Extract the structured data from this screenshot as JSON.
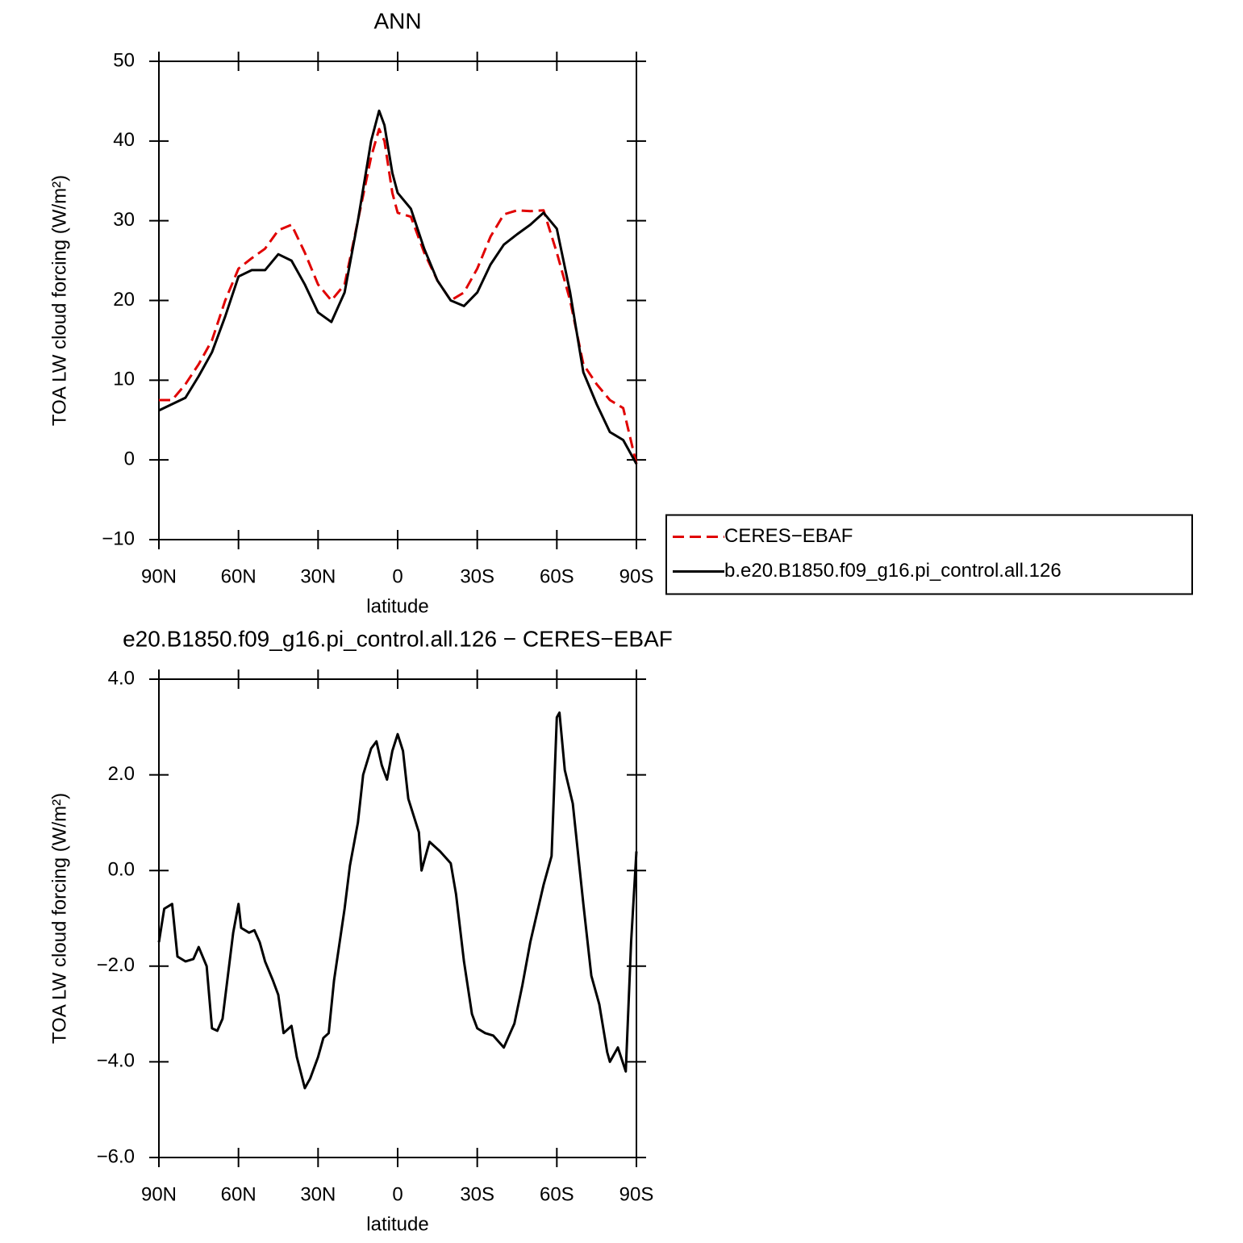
{
  "chart_data": [
    {
      "type": "line",
      "title": "ANN",
      "xlabel": "latitude",
      "ylabel": "TOA LW cloud forcing (W/m²)",
      "x": [
        90,
        85,
        80,
        75,
        70,
        65,
        60,
        55,
        50,
        45,
        40,
        35,
        30,
        25,
        20,
        15,
        10,
        7,
        5,
        2,
        0,
        -5,
        -10,
        -15,
        -20,
        -25,
        -30,
        -35,
        -40,
        -45,
        -50,
        -55,
        -60,
        -65,
        -70,
        -75,
        -80,
        -85,
        -90
      ],
      "series": [
        {
          "name": "CERES−EBAF",
          "color": "#e00000",
          "dash": true,
          "values": [
            7.5,
            7.5,
            9.5,
            12,
            15,
            20,
            24,
            25.3,
            26.5,
            28.8,
            29.5,
            26,
            22,
            20,
            22,
            30,
            38,
            41.5,
            40,
            33.5,
            31,
            30.5,
            26,
            22.5,
            20,
            21,
            24,
            28,
            30.8,
            31.3,
            31.2,
            31.3,
            26,
            20,
            12,
            9.5,
            7.5,
            6.5,
            -0.5
          ]
        },
        {
          "name": "b.e20.B1850.f09_g16.pi_control.all.126",
          "color": "#000000",
          "dash": false,
          "values": [
            6.2,
            7.0,
            7.8,
            10.5,
            13.5,
            18,
            23,
            23.8,
            23.8,
            25.8,
            25,
            22,
            18.5,
            17.3,
            21,
            30,
            40,
            43.8,
            42,
            36,
            33.5,
            31.5,
            26.5,
            22.5,
            20,
            19.3,
            21,
            24.5,
            27,
            28.3,
            29.5,
            31,
            29,
            21,
            11,
            7,
            3.5,
            2.5,
            -0.5
          ]
        }
      ],
      "xlim": [
        90,
        -90
      ],
      "xticks": [
        {
          "value": 90,
          "label": "90N"
        },
        {
          "value": 60,
          "label": "60N"
        },
        {
          "value": 30,
          "label": "30N"
        },
        0,
        {
          "value": -30,
          "label": "30S"
        },
        {
          "value": -60,
          "label": "60S"
        },
        {
          "value": -90,
          "label": "90S"
        }
      ],
      "ylim": [
        -10,
        50
      ],
      "yticks": [
        {
          "value": -10,
          "label": "−10"
        },
        0,
        10,
        20,
        30,
        40,
        50
      ],
      "legend": "right"
    },
    {
      "type": "line",
      "title": "e20.B1850.f09_g16.pi_control.all.126 − CERES−EBAF",
      "xlabel": "latitude",
      "ylabel": "TOA LW cloud forcing (W/m²)",
      "x": [
        90,
        88,
        85,
        83,
        80,
        77,
        75,
        72,
        70,
        68,
        66,
        64,
        62,
        60,
        59,
        56,
        54,
        52,
        50,
        47,
        45,
        43,
        40,
        38,
        35,
        33,
        30,
        28,
        26,
        24,
        20,
        18,
        15,
        13,
        10,
        8,
        6,
        4,
        2,
        0,
        -2,
        -4,
        -8,
        -9,
        -12,
        -16,
        -20,
        -22,
        -25,
        -28,
        -30,
        -33,
        -36,
        -40,
        -44,
        -47,
        -50,
        -55,
        -58,
        -60,
        -61,
        -63,
        -66,
        -70,
        -73,
        -76,
        -79,
        -80,
        -83,
        -86,
        -88,
        -90
      ],
      "series": [
        {
          "color": "#000000",
          "dash": false,
          "values": [
            -1.5,
            -0.8,
            -0.7,
            -1.8,
            -1.9,
            -1.85,
            -1.6,
            -2.0,
            -3.3,
            -3.35,
            -3.1,
            -2.2,
            -1.3,
            -0.7,
            -1.2,
            -1.3,
            -1.25,
            -1.5,
            -1.9,
            -2.3,
            -2.6,
            -3.4,
            -3.25,
            -3.9,
            -4.55,
            -4.35,
            -3.9,
            -3.5,
            -3.4,
            -2.3,
            -0.8,
            0.1,
            1.0,
            2.0,
            2.55,
            2.7,
            2.2,
            1.9,
            2.5,
            2.85,
            2.5,
            1.5,
            0.8,
            0.0,
            0.6,
            0.4,
            0.15,
            -0.5,
            -1.9,
            -3.0,
            -3.3,
            -3.4,
            -3.45,
            -3.7,
            -3.2,
            -2.4,
            -1.5,
            -0.3,
            0.3,
            3.2,
            3.3,
            2.1,
            1.4,
            -0.7,
            -2.2,
            -2.8,
            -3.8,
            -4.0,
            -3.7,
            -4.2,
            -1.5,
            0.4
          ]
        }
      ],
      "xlim": [
        90,
        -90
      ],
      "xticks": [
        {
          "value": 90,
          "label": "90N"
        },
        {
          "value": 60,
          "label": "60N"
        },
        {
          "value": 30,
          "label": "30N"
        },
        0,
        {
          "value": -30,
          "label": "30S"
        },
        {
          "value": -60,
          "label": "60S"
        },
        {
          "value": -90,
          "label": "90S"
        }
      ],
      "ylim": [
        -6,
        4
      ],
      "yticks": [
        {
          "value": -6,
          "label": "−6.0"
        },
        {
          "value": -4,
          "label": "−4.0"
        },
        {
          "value": -2,
          "label": "−2.0"
        },
        {
          "value": 0,
          "label": "0.0"
        },
        {
          "value": 2,
          "label": "2.0"
        },
        {
          "value": 4,
          "label": "4.0"
        }
      ]
    }
  ]
}
